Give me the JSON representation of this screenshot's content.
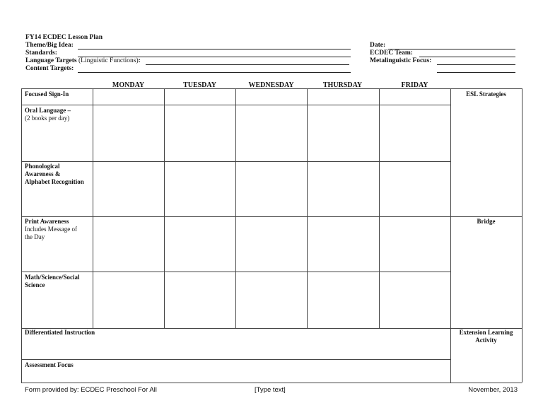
{
  "header": {
    "title": "FY14 ECDEC Lesson Plan",
    "theme_label": "Theme/Big Idea:",
    "standards_label": "Standards:",
    "language_targets_label": "Language Targets",
    "language_targets_note": "(Linguistic Functions)",
    "language_targets_colon": ":",
    "content_targets_label": "Content Targets:",
    "date_label": "Date:",
    "team_label": "ECDEC Team:",
    "metalinguistic_label": "Metalinguistic Focus:"
  },
  "days": [
    "MONDAY",
    "TUESDAY",
    "WEDNESDAY",
    "THURSDAY",
    "FRIDAY"
  ],
  "rows": {
    "focused": "Focused Sign-In",
    "oral": "Oral Language –",
    "oral_note": "(2 books per day)",
    "phon": [
      "Phonological",
      "Awareness &",
      "Alphabet Recognition"
    ],
    "print": "Print Awareness",
    "print_note": [
      "Includes Message of",
      "the Day"
    ],
    "math": [
      "Math/Science/Social",
      "Science"
    ],
    "diff": "Differentiated Instruction",
    "assess": "Assessment Focus"
  },
  "side": {
    "esl": "ESL Strategies",
    "bridge": "Bridge",
    "extension": [
      "Extension Learning",
      "Activity"
    ]
  },
  "footer": {
    "left": "Form provided by: ECDEC Preschool For All",
    "center": "[Type text]",
    "right": "November, 2013"
  }
}
